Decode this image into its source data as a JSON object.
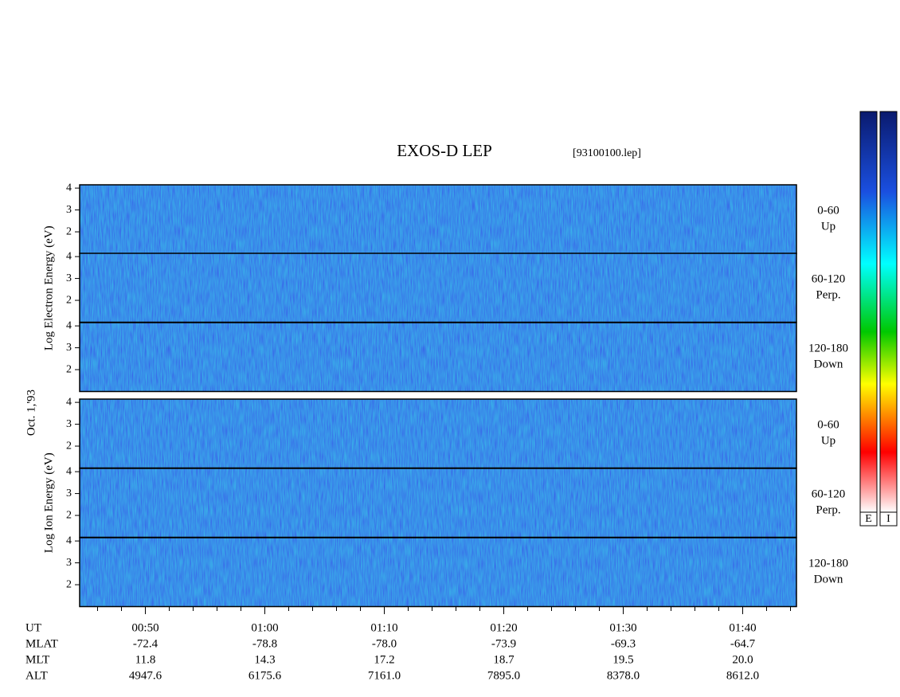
{
  "chart_data": {
    "type": "spectrogram",
    "title": "EXOS-D LEP",
    "subtitle": "[93100100.lep]",
    "date_label": "Oct. 1,'93",
    "xlim": [
      44.5,
      104.5
    ],
    "xticks": [
      {
        "value": 50,
        "label": "00:50"
      },
      {
        "value": 60,
        "label": "01:00"
      },
      {
        "value": 70,
        "label": "01:10"
      },
      {
        "value": 80,
        "label": "01:20"
      },
      {
        "value": 90,
        "label": "01:30"
      },
      {
        "value": 100,
        "label": "01:40"
      }
    ],
    "minor_tick_step": 2,
    "groups": [
      {
        "axis_label": "Log Electron Energy (eV)",
        "colorbar_label": "E",
        "panels": [
          {
            "label": [
              "0-60",
              "Up"
            ],
            "ylim": [
              1,
              4.15
            ],
            "yticks": [
              2,
              3,
              4
            ]
          },
          {
            "label": [
              "60-120",
              "Perp."
            ],
            "ylim": [
              1,
              4.15
            ],
            "yticks": [
              2,
              3,
              4
            ]
          },
          {
            "label": [
              "120-180",
              "Down"
            ],
            "ylim": [
              1,
              4.15
            ],
            "yticks": [
              2,
              3,
              4
            ]
          }
        ]
      },
      {
        "axis_label": "Log Ion Energy (eV)",
        "colorbar_label": "I",
        "panels": [
          {
            "label": [
              "0-60",
              "Up"
            ],
            "ylim": [
              1,
              4.15
            ],
            "yticks": [
              2,
              3,
              4
            ]
          },
          {
            "label": [
              "60-120",
              "Perp."
            ],
            "ylim": [
              1,
              4.15
            ],
            "yticks": [
              2,
              3,
              4
            ]
          },
          {
            "label": [
              "120-180",
              "Down"
            ],
            "ylim": [
              1,
              4.15
            ],
            "yticks": [
              2,
              3,
              4
            ]
          }
        ]
      }
    ],
    "ephemeris": {
      "labels": [
        "UT",
        "MLAT",
        "MLT",
        "ALT"
      ],
      "rows": [
        [
          "-72.4",
          "-78.8",
          "-78.0",
          "-73.9",
          "-69.3",
          "-64.7"
        ],
        [
          "11.8",
          "14.3",
          "17.2",
          "18.7",
          "19.5",
          "20.0"
        ],
        [
          "4947.6",
          "6175.6",
          "7161.0",
          "7895.0",
          "8378.0",
          "8612.0"
        ]
      ]
    }
  }
}
